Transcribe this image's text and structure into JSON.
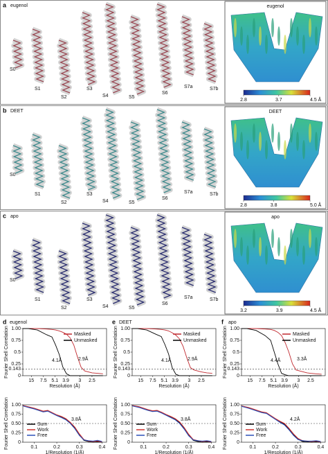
{
  "panels": [
    {
      "label": "a",
      "title": "eugenol",
      "helix_labels": [
        "S0",
        "S1",
        "S2",
        "S3",
        "S4",
        "S5",
        "S6",
        "S7a",
        "S7b"
      ],
      "color": "#9a4a55",
      "map_title": "eugenol",
      "colorbar": {
        "lim": [
          2.8,
          4.5
        ],
        "ticks": [
          2.8,
          3.7,
          {
            "value": 4.5,
            "label": "4.5 Å"
          }
        ]
      }
    },
    {
      "label": "b",
      "title": "DEET",
      "helix_labels": [
        "S0",
        "S1",
        "S2",
        "S3",
        "S4",
        "S5",
        "S6",
        "S7a",
        "S7b"
      ],
      "color": "#3f8a8c",
      "map_title": "DEET",
      "colorbar": {
        "lim": [
          2.8,
          5.0
        ],
        "ticks": [
          2.8,
          3.8,
          {
            "value": 5.0,
            "label": "5.0 Å"
          }
        ]
      }
    },
    {
      "label": "c",
      "title": "apo",
      "helix_labels": [
        "S0",
        "S1",
        "S2",
        "S3",
        "S4",
        "S5",
        "S6",
        "S7a",
        "S7b"
      ],
      "color": "#2b2e70",
      "map_title": "apo",
      "colorbar": {
        "lim": [
          3.2,
          4.5
        ],
        "ticks": [
          3.2,
          3.9,
          {
            "value": 4.5,
            "label": "4.5 Å"
          }
        ]
      }
    }
  ],
  "chart_data": [
    {
      "type": "line",
      "panel_label": "d",
      "title": "eugenol",
      "x_label": "Resolution (Å)",
      "y_label": "Fourier Shell Correlation",
      "legend": "upper right",
      "threshold": 0.143,
      "annotations": [
        "4.1Å",
        "2.9Å"
      ],
      "x": [
        0.02,
        0.05,
        0.1,
        0.15,
        0.18,
        0.2,
        0.22,
        0.24,
        0.26,
        0.28,
        0.3,
        0.32,
        0.34,
        0.36,
        0.38,
        0.4,
        0.43,
        0.46
      ],
      "series": [
        {
          "name": "Masked",
          "color": "#c0272d",
          "values": [
            1,
            1,
            1,
            0.99,
            0.98,
            0.97,
            0.95,
            0.92,
            0.88,
            0.8,
            0.65,
            0.4,
            0.18,
            0.1,
            0.08,
            0.06,
            0.05,
            0.04
          ]
        },
        {
          "name": "Unmasked",
          "color": "#000000",
          "values": [
            1,
            1,
            0.97,
            0.87,
            0.82,
            0.65,
            0.45,
            0.18,
            0.04,
            0,
            0,
            0,
            0,
            0,
            0,
            0,
            0,
            0
          ]
        }
      ],
      "xlim": [
        0.02,
        0.48
      ],
      "xticks": [
        {
          "value": 0.0667,
          "label": "15"
        },
        {
          "value": 0.1333,
          "label": "7.5"
        },
        {
          "value": 0.196,
          "label": "5.1"
        },
        {
          "value": 0.256,
          "label": "3.9"
        },
        {
          "value": 0.333,
          "label": "3"
        },
        {
          "value": 0.4,
          "label": "2.5"
        }
      ],
      "ylim": [
        0,
        1
      ],
      "yticks": [
        0,
        0.143,
        0.25,
        0.5,
        0.75,
        {
          "value": 1,
          "label": "1.00"
        }
      ]
    },
    {
      "type": "line",
      "panel_label": "e",
      "title": "DEET",
      "x_label": "Resolution (Å)",
      "y_label": "Fourier Shell Correlation",
      "legend": "upper right",
      "threshold": 0.143,
      "annotations": [
        "4.1Å",
        "2.9Å"
      ],
      "x": [
        0.02,
        0.05,
        0.1,
        0.15,
        0.18,
        0.2,
        0.22,
        0.24,
        0.26,
        0.28,
        0.3,
        0.32,
        0.34,
        0.36,
        0.38,
        0.4,
        0.43,
        0.46
      ],
      "series": [
        {
          "name": "Masked",
          "color": "#c0272d",
          "values": [
            1,
            1,
            1,
            0.99,
            0.98,
            0.97,
            0.95,
            0.91,
            0.86,
            0.78,
            0.62,
            0.38,
            0.17,
            0.12,
            0.1,
            0.08,
            0.06,
            0.05
          ]
        },
        {
          "name": "Unmasked",
          "color": "#000000",
          "values": [
            1,
            1,
            0.97,
            0.88,
            0.83,
            0.66,
            0.46,
            0.17,
            0.03,
            0,
            0,
            0,
            0,
            0,
            0,
            0,
            0,
            0
          ]
        }
      ],
      "xlim": [
        0.02,
        0.48
      ],
      "xticks": [
        {
          "value": 0.0667,
          "label": "15"
        },
        {
          "value": 0.1333,
          "label": "7.5"
        },
        {
          "value": 0.196,
          "label": "5.1"
        },
        {
          "value": 0.256,
          "label": "3.9"
        },
        {
          "value": 0.333,
          "label": "3"
        },
        {
          "value": 0.4,
          "label": "2.5"
        }
      ],
      "ylim": [
        0,
        1
      ],
      "yticks": [
        0,
        0.143,
        0.25,
        0.5,
        0.75,
        {
          "value": 1,
          "label": "1.00"
        }
      ]
    },
    {
      "type": "line",
      "panel_label": "f",
      "title": "apo",
      "x_label": "Resolution (Å)",
      "y_label": "Fourier Shell Correlation",
      "legend": "upper right",
      "threshold": 0.143,
      "annotations": [
        "4.4Å",
        "3.3Å"
      ],
      "x": [
        0.02,
        0.05,
        0.1,
        0.15,
        0.18,
        0.2,
        0.22,
        0.24,
        0.26,
        0.28,
        0.3,
        0.32,
        0.34,
        0.36,
        0.38,
        0.4,
        0.43,
        0.46
      ],
      "series": [
        {
          "name": "Masked",
          "color": "#c0272d",
          "values": [
            1,
            1,
            1,
            0.99,
            0.98,
            0.96,
            0.92,
            0.85,
            0.7,
            0.5,
            0.25,
            0.12,
            0.1,
            0.08,
            0.06,
            0.05,
            0.04,
            0.03
          ]
        },
        {
          "name": "Unmasked",
          "color": "#000000",
          "values": [
            1,
            1,
            0.96,
            0.85,
            0.75,
            0.5,
            0.25,
            0.05,
            0.02,
            0,
            0,
            0,
            0,
            0,
            0,
            0,
            0,
            0
          ]
        }
      ],
      "xlim": [
        0.02,
        0.48
      ],
      "xticks": [
        {
          "value": 0.0667,
          "label": "15"
        },
        {
          "value": 0.1333,
          "label": "7.5"
        },
        {
          "value": 0.196,
          "label": "5.1"
        },
        {
          "value": 0.256,
          "label": "3.9"
        },
        {
          "value": 0.333,
          "label": "3"
        },
        {
          "value": 0.4,
          "label": "2.5"
        }
      ],
      "ylim": [
        0,
        1
      ],
      "yticks": [
        0,
        0.143,
        0.25,
        0.5,
        0.75,
        {
          "value": 1,
          "label": "1.00"
        }
      ]
    },
    {
      "type": "line",
      "x_label": "1/Resolution (1/Å)",
      "y_label": "Fourier Shell Correlation",
      "legend": "lower left",
      "threshold": 0.5,
      "annotations": [
        "3.8Å"
      ],
      "x": [
        0.05,
        0.08,
        0.1,
        0.12,
        0.14,
        0.16,
        0.18,
        0.2,
        0.22,
        0.24,
        0.26,
        0.28,
        0.3,
        0.32,
        0.34,
        0.36,
        0.38,
        0.4
      ],
      "series": [
        {
          "name": "Sum",
          "color": "#000000",
          "values": [
            0.98,
            0.93,
            0.9,
            0.86,
            0.82,
            0.84,
            0.78,
            0.72,
            0.68,
            0.62,
            0.52,
            0.38,
            0.2,
            0.05,
            0.02,
            0,
            0.01,
            0
          ]
        },
        {
          "name": "Work",
          "color": "#d0322e",
          "values": [
            0.98,
            0.94,
            0.91,
            0.87,
            0.83,
            0.85,
            0.79,
            0.73,
            0.69,
            0.63,
            0.53,
            0.4,
            0.22,
            0.07,
            0.03,
            0.02,
            0.03,
            0.01
          ]
        },
        {
          "name": "Free",
          "color": "#2a4fb8",
          "values": [
            0.97,
            0.92,
            0.89,
            0.85,
            0.81,
            0.83,
            0.77,
            0.71,
            0.66,
            0.6,
            0.5,
            0.36,
            0.18,
            0.06,
            0.04,
            0.03,
            0.05,
            0.02
          ]
        }
      ],
      "xlim": [
        0.05,
        0.42
      ],
      "xticks": [
        0.1,
        0.2,
        0.3,
        0.4
      ],
      "ylim": [
        0,
        1
      ],
      "yticks": [
        0,
        0.25,
        {
          "value": 0.5,
          "label": "0.50"
        },
        0.75,
        {
          "value": 1,
          "label": "1.00"
        }
      ]
    },
    {
      "type": "line",
      "x_label": "1/Resolution (1/Å)",
      "y_label": "Fourier Shell Correlation",
      "legend": "lower left",
      "threshold": 0.5,
      "annotations": [
        "3.8Å"
      ],
      "x": [
        0.05,
        0.08,
        0.1,
        0.12,
        0.14,
        0.16,
        0.18,
        0.2,
        0.22,
        0.24,
        0.26,
        0.28,
        0.3,
        0.32,
        0.34,
        0.36,
        0.38,
        0.4
      ],
      "series": [
        {
          "name": "Sum",
          "color": "#000000",
          "values": [
            0.98,
            0.94,
            0.9,
            0.86,
            0.83,
            0.84,
            0.79,
            0.73,
            0.68,
            0.62,
            0.52,
            0.37,
            0.19,
            0.05,
            0.02,
            0,
            0.01,
            0
          ]
        },
        {
          "name": "Work",
          "color": "#d0322e",
          "values": [
            0.98,
            0.95,
            0.91,
            0.87,
            0.84,
            0.85,
            0.8,
            0.74,
            0.69,
            0.63,
            0.54,
            0.39,
            0.21,
            0.07,
            0.04,
            0.02,
            0.03,
            0.01
          ]
        },
        {
          "name": "Free",
          "color": "#2a4fb8",
          "values": [
            0.97,
            0.93,
            0.89,
            0.85,
            0.82,
            0.83,
            0.78,
            0.72,
            0.66,
            0.6,
            0.5,
            0.35,
            0.17,
            0.06,
            0.04,
            0.03,
            0.04,
            0.02
          ]
        }
      ],
      "xlim": [
        0.05,
        0.42
      ],
      "xticks": [
        0.1,
        0.2,
        0.3,
        0.4
      ],
      "ylim": [
        0,
        1
      ],
      "yticks": [
        0,
        0.25,
        {
          "value": 0.5,
          "label": "0.50"
        },
        0.75,
        {
          "value": 1,
          "label": "1.00"
        }
      ]
    },
    {
      "type": "line",
      "x_label": "1/Resolution (1/Å)",
      "y_label": "Fourier Shell Correlation",
      "legend": "lower left",
      "threshold": 0.5,
      "annotations": [
        "4.2Å"
      ],
      "x": [
        0.05,
        0.08,
        0.1,
        0.12,
        0.14,
        0.16,
        0.18,
        0.2,
        0.22,
        0.24,
        0.26,
        0.28,
        0.3,
        0.32,
        0.34,
        0.36,
        0.38,
        0.4
      ],
      "series": [
        {
          "name": "Sum",
          "color": "#000000",
          "values": [
            0.97,
            0.92,
            0.88,
            0.84,
            0.8,
            0.78,
            0.7,
            0.62,
            0.55,
            0.48,
            0.35,
            0.2,
            0.08,
            0.02,
            0.01,
            0,
            0.01,
            0
          ]
        },
        {
          "name": "Work",
          "color": "#d0322e",
          "values": [
            0.97,
            0.93,
            0.89,
            0.85,
            0.81,
            0.79,
            0.71,
            0.63,
            0.56,
            0.5,
            0.37,
            0.22,
            0.1,
            0.04,
            0.03,
            0.02,
            0.03,
            0.01
          ]
        },
        {
          "name": "Free",
          "color": "#2a4fb8",
          "values": [
            0.96,
            0.91,
            0.87,
            0.83,
            0.79,
            0.77,
            0.69,
            0.61,
            0.53,
            0.46,
            0.33,
            0.18,
            0.07,
            0.04,
            0.03,
            0.03,
            0.04,
            0.02
          ]
        }
      ],
      "xlim": [
        0.05,
        0.42
      ],
      "xticks": [
        0.1,
        0.2,
        0.3,
        0.4
      ],
      "ylim": [
        0,
        1
      ],
      "yticks": [
        0,
        0.25,
        {
          "value": 0.5,
          "label": "0.50"
        },
        0.75,
        {
          "value": 1,
          "label": "1.00"
        }
      ]
    }
  ]
}
